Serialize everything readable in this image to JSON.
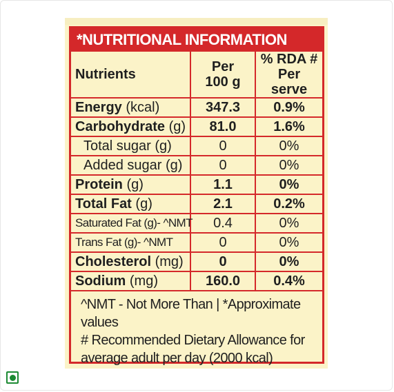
{
  "table": {
    "title": "*NUTRITIONAL INFORMATION",
    "headers": {
      "nutrients": "Nutrients",
      "per_line1": "Per",
      "per_line2": "100 g",
      "rda_line1": "% RDA #",
      "rda_line2": "Per serve"
    },
    "rows": [
      {
        "name": "Energy",
        "unit": " (kcal)",
        "per100g": "347.3",
        "rda": "0.9%"
      },
      {
        "name": "Carbohydrate",
        "unit": " (g)",
        "per100g": "81.0",
        "rda": "1.6%"
      },
      {
        "name": "Total sugar (g)",
        "unit": "",
        "per100g": "0",
        "rda": "0%"
      },
      {
        "name": "Added sugar (g)",
        "unit": "",
        "per100g": "0",
        "rda": "0%"
      },
      {
        "name": "Protein",
        "unit": " (g)",
        "per100g": "1.1",
        "rda": "0%"
      },
      {
        "name": "Total Fat",
        "unit": " (g)",
        "per100g": "2.1",
        "rda": "0.2%"
      },
      {
        "name": "Saturated Fat (g)- ^NMT",
        "unit": "",
        "per100g": "0.4",
        "rda": "0%"
      },
      {
        "name": "Trans Fat (g)- ^NMT",
        "unit": "",
        "per100g": "0",
        "rda": "0%"
      },
      {
        "name": "Cholesterol",
        "unit": " (mg)",
        "per100g": "0",
        "rda": "0%"
      },
      {
        "name": "Sodium",
        "unit": " (mg)",
        "per100g": "160.0",
        "rda": "0.4%"
      }
    ],
    "footer_line1": "^NMT - Not More Than | *Approximate values",
    "footer_line2": "# Recommended Dietary Allowance for",
    "footer_line3": "average adult per day (2000 kcal)"
  },
  "colors": {
    "accent": "#d4282a",
    "label_background": "#fbf3c8",
    "veg_mark": "#1c8a33"
  },
  "icons": {
    "veg": "veg-symbol-icon"
  }
}
